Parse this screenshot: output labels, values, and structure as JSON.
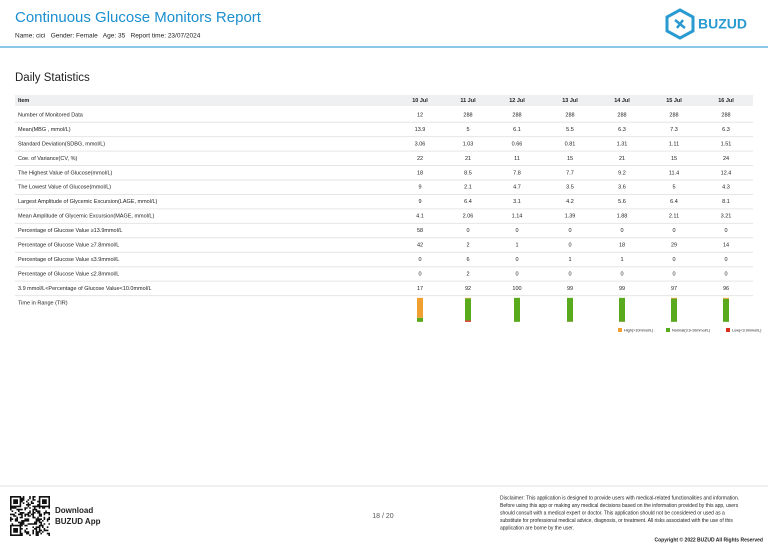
{
  "header": {
    "title": "Continuous Glucose Monitors Report",
    "info": "Name: cici   Gender: Female   Age: 35   Report time: 23/07/2024",
    "logo": "BUZUD"
  },
  "section_title": "Daily Statistics",
  "table": {
    "columns": [
      "Item",
      "10 Jul",
      "11 Jul",
      "12 Jul",
      "13 Jul",
      "14 Jul",
      "15 Jul",
      "16 Jul"
    ],
    "rows": [
      [
        "Number of Monitored Data",
        "12",
        "288",
        "288",
        "288",
        "288",
        "288",
        "288"
      ],
      [
        "Mean(MBG , mmol/L)",
        "13.9",
        "5",
        "6.1",
        "5.5",
        "6.3",
        "7.3",
        "6.3"
      ],
      [
        "Standard Deviation(SDBG, mmol/L)",
        "3.06",
        "1.03",
        "0.66",
        "0.81",
        "1.31",
        "1.11",
        "1.51"
      ],
      [
        "Coe. of Variance(CV, %)",
        "22",
        "21",
        "11",
        "15",
        "21",
        "15",
        "24"
      ],
      [
        "The Highest Value of Glucose(mmol/L)",
        "18",
        "8.5",
        "7.8",
        "7.7",
        "9.2",
        "11.4",
        "12.4"
      ],
      [
        "The Lowest Value of Glucose(mmol/L)",
        "9",
        "2.1",
        "4.7",
        "3.5",
        "3.6",
        "5",
        "4.3"
      ],
      [
        "Largest Amplitude of Glycemic Excursion(LAGE, mmol/L)",
        "9",
        "6.4",
        "3.1",
        "4.2",
        "5.6",
        "6.4",
        "8.1"
      ],
      [
        "Mean Amplitude of Glycemic Excursion(MAGE, mmol/L)",
        "4.1",
        "2.06",
        "1.14",
        "1.39",
        "1.88",
        "2.11",
        "3.21"
      ],
      [
        "Percentage of Glucose Value ≥13.9mmol/L",
        "58",
        "0",
        "0",
        "0",
        "0",
        "0",
        "0"
      ],
      [
        "Percentage of Glucose Value ≥7.8mmol/L",
        "42",
        "2",
        "1",
        "0",
        "18",
        "29",
        "14"
      ],
      [
        "Percentage of Glucose Value ≤3.9mmol/L",
        "0",
        "6",
        "0",
        "1",
        "1",
        "0",
        "0"
      ],
      [
        "Percentage of Glucose Value ≤2.8mmol/L",
        "0",
        "2",
        "0",
        "0",
        "0",
        "0",
        "0"
      ],
      [
        "3.9 mmol/L<Percentage of Glucose Value<10.0mmol/L",
        "17",
        "92",
        "100",
        "99",
        "99",
        "97",
        "96"
      ]
    ],
    "tir_label": "Time in Range (TIR)"
  },
  "tir": {
    "type": "stacked-bar",
    "ylim": [
      0,
      100
    ],
    "series": [
      {
        "name": "High(>10mmol/L)",
        "color": "#f0a030",
        "values": [
          83,
          2,
          0,
          0,
          0,
          3,
          4
        ]
      },
      {
        "name": "Normal(3.9-10mmol/L)",
        "color": "#5aaa1e",
        "values": [
          17,
          92,
          100,
          99,
          99,
          97,
          96
        ]
      },
      {
        "name": "Low(<3.9mmol/L)",
        "color": "#d9301e",
        "values": [
          0,
          6,
          0,
          1,
          1,
          0,
          0
        ]
      }
    ]
  },
  "footer": {
    "download": [
      "Download",
      "BUZUD App"
    ],
    "page": "18 / 20",
    "disclaimer": [
      "Disclaimer: This application is designed to provide users with medical-related functionalities and information.",
      "Before using this app or making any medical decisions based on the information provided by this app, users",
      "should consult with a medical expert or doctor. This application should not be considered or used as a",
      "substitute for professional medical advice, diagnosis, or treatment. All risks associated with the use of this",
      "application are borne by the user."
    ],
    "copyright": "Copyright © 2022 BUZUD All Rights Reserved"
  }
}
